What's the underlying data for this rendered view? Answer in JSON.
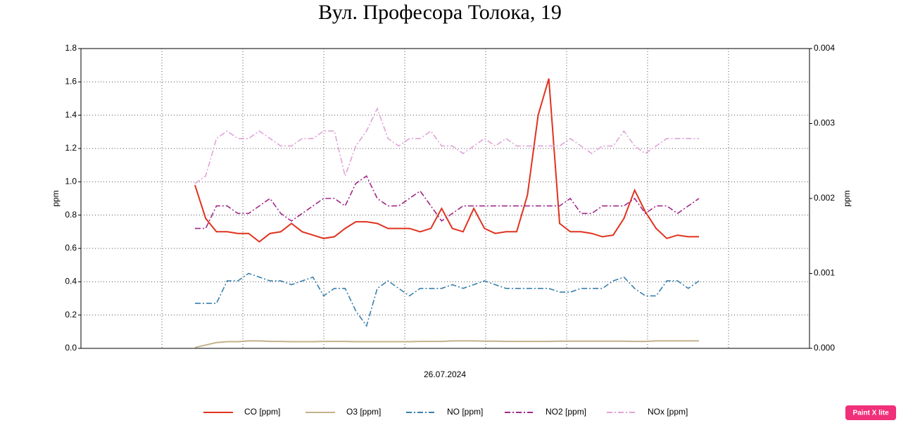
{
  "chart_data": {
    "type": "line",
    "title": "Вул. Професора Толока, 19",
    "x_label": "26.07.2024",
    "y_label": "ppm",
    "y2_label": "ppm",
    "categories": [
      null,
      null,
      null,
      null,
      null,
      null,
      null,
      null,
      null,
      null,
      null,
      null,
      null,
      null,
      null,
      null,
      null,
      null,
      null,
      null,
      null,
      null,
      null,
      null,
      null,
      null,
      null,
      null,
      null,
      null,
      null,
      null,
      null,
      null,
      null,
      null,
      null,
      null,
      null,
      null,
      null,
      null,
      null,
      null,
      null,
      null,
      null,
      null
    ],
    "ylim": [
      0,
      1.8
    ],
    "yticks": [
      {
        "value": 0,
        "label": "0.0"
      },
      0.2,
      0.4,
      0.6,
      0.8,
      {
        "value": 1,
        "label": "1.0"
      },
      1.2,
      1.4,
      1.6,
      1.8
    ],
    "y2lim": [
      0,
      0.004
    ],
    "y2ticks": [
      {
        "value": 0,
        "label": "0.000"
      },
      {
        "value": 0.001,
        "label": "0.001"
      },
      {
        "value": 0.002,
        "label": "0.002"
      },
      {
        "value": 0.003,
        "label": "0.003"
      },
      {
        "value": 0.004,
        "label": "0.004"
      }
    ],
    "grid": true,
    "legend": "bottom",
    "series": [
      {
        "name": "CO [ppm]",
        "color": "#e0321e",
        "line_style": "solid",
        "values": [
          0.98,
          0.78,
          0.7,
          0.7,
          0.69,
          0.69,
          0.64,
          0.69,
          0.7,
          0.75,
          0.7,
          0.68,
          0.66,
          0.67,
          0.72,
          0.76,
          0.76,
          0.75,
          0.72,
          0.72,
          0.72,
          0.7,
          0.72,
          0.84,
          0.72,
          0.7,
          0.84,
          0.72,
          0.69,
          0.7,
          0.7,
          0.92,
          1.4,
          1.62,
          0.75,
          0.7,
          0.7,
          0.69,
          0.67,
          0.68,
          0.78,
          0.95,
          0.82,
          0.72,
          0.66,
          0.68,
          0.67,
          0.67
        ]
      },
      {
        "name": "O3 [ppm]",
        "color": "#c4b08a",
        "line_style": "solid",
        "values": [
          0.005,
          0.02,
          0.035,
          0.04,
          0.04,
          0.045,
          0.045,
          0.042,
          0.042,
          0.04,
          0.04,
          0.04,
          0.042,
          0.042,
          0.042,
          0.04,
          0.04,
          0.04,
          0.04,
          0.04,
          0.04,
          0.042,
          0.042,
          0.042,
          0.045,
          0.045,
          0.045,
          0.043,
          0.043,
          0.042,
          0.042,
          0.042,
          0.042,
          0.042,
          0.043,
          0.043,
          0.043,
          0.043,
          0.043,
          0.043,
          0.043,
          0.042,
          0.042,
          0.045,
          0.045,
          0.045,
          0.045,
          0.045
        ]
      },
      {
        "name": "NO [ppm]",
        "color": "#3a80ac",
        "line_style": "dashdot",
        "axis": "y2",
        "values": [
          0.0006,
          0.0006,
          0.0006,
          0.0009,
          0.0009,
          0.001,
          0.00095,
          0.0009,
          0.0009,
          0.00085,
          0.0009,
          0.00095,
          0.0007,
          0.0008,
          0.0008,
          0.0005,
          0.0003,
          0.0008,
          0.0009,
          0.0008,
          0.0007,
          0.0008,
          0.0008,
          0.0008,
          0.00085,
          0.0008,
          0.00085,
          0.0009,
          0.00085,
          0.0008,
          0.0008,
          0.0008,
          0.0008,
          0.0008,
          0.00075,
          0.00075,
          0.0008,
          0.0008,
          0.0008,
          0.0009,
          0.00095,
          0.0008,
          0.0007,
          0.0007,
          0.0009,
          0.0009,
          0.0008,
          0.0009
        ]
      },
      {
        "name": "NO2 [ppm]",
        "color": "#a02888",
        "line_style": "dashdot",
        "axis": "y2",
        "values": [
          0.0016,
          0.0016,
          0.0019,
          0.0019,
          0.0018,
          0.0018,
          0.0019,
          0.002,
          0.0018,
          0.0017,
          0.0018,
          0.0019,
          0.002,
          0.002,
          0.0019,
          0.0022,
          0.0023,
          0.002,
          0.0019,
          0.0019,
          0.002,
          0.0021,
          0.0019,
          0.0017,
          0.0018,
          0.0019,
          0.0019,
          0.0019,
          0.0019,
          0.0019,
          0.0019,
          0.0019,
          0.0019,
          0.0019,
          0.0019,
          0.002,
          0.0018,
          0.0018,
          0.0019,
          0.0019,
          0.0019,
          0.002,
          0.0018,
          0.0019,
          0.0019,
          0.0018,
          0.0019,
          0.002
        ]
      },
      {
        "name": "NOx [ppm]",
        "color": "#e0a4d8",
        "line_style": "dashdot",
        "axis": "y2",
        "values": [
          0.0022,
          0.0023,
          0.0028,
          0.0029,
          0.0028,
          0.0028,
          0.0029,
          0.0028,
          0.0027,
          0.0027,
          0.0028,
          0.0028,
          0.0029,
          0.0029,
          0.0023,
          0.0027,
          0.0029,
          0.0032,
          0.0028,
          0.0027,
          0.0028,
          0.0028,
          0.0029,
          0.0027,
          0.0027,
          0.0026,
          0.0027,
          0.0028,
          0.0027,
          0.0028,
          0.0027,
          0.0027,
          0.0027,
          0.0027,
          0.0027,
          0.0028,
          0.0027,
          0.0026,
          0.0027,
          0.0027,
          0.0029,
          0.0027,
          0.0026,
          0.0027,
          0.0028,
          0.0028,
          0.0028,
          0.0028
        ]
      }
    ]
  },
  "watermark": "Paint X lite"
}
